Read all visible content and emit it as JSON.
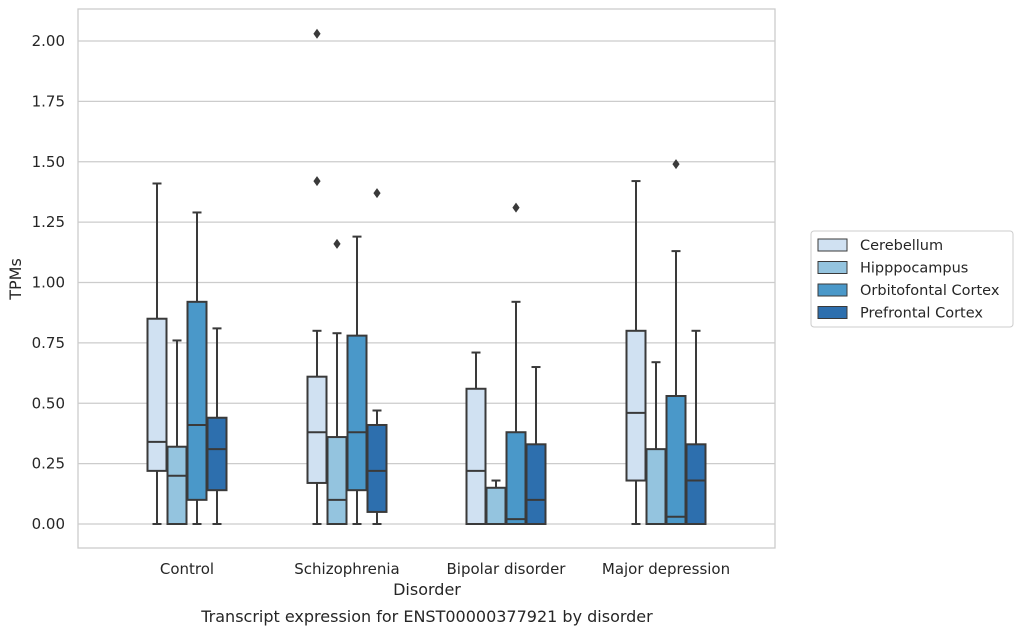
{
  "chart_data": {
    "type": "box",
    "title": "",
    "caption": "Transcript expression for ENST00000377921 by disorder",
    "xlabel": "Disorder",
    "ylabel": "TPMs",
    "ylim": [
      -0.1,
      2.13
    ],
    "yticks": [
      "0.00",
      "0.25",
      "0.50",
      "0.75",
      "1.00",
      "1.25",
      "1.50",
      "1.75",
      "2.00"
    ],
    "grid": true,
    "legend_position": "right",
    "categories": [
      "Control",
      "Schizophrenia",
      "Bipolar disorder",
      "Major depression"
    ],
    "series": [
      {
        "name": "Cerebellum",
        "color": "#d0e1f2",
        "boxes": [
          {
            "whisker_low": 0.0,
            "q1": 0.22,
            "median": 0.34,
            "q3": 0.85,
            "whisker_high": 1.41,
            "outliers": []
          },
          {
            "whisker_low": 0.0,
            "q1": 0.17,
            "median": 0.38,
            "q3": 0.61,
            "whisker_high": 0.8,
            "outliers": [
              1.42,
              2.03
            ]
          },
          {
            "whisker_low": 0.0,
            "q1": 0.0,
            "median": 0.22,
            "q3": 0.56,
            "whisker_high": 0.71,
            "outliers": []
          },
          {
            "whisker_low": 0.0,
            "q1": 0.18,
            "median": 0.46,
            "q3": 0.8,
            "whisker_high": 1.42,
            "outliers": []
          }
        ]
      },
      {
        "name": "Hipppocampus",
        "color": "#94c4df",
        "boxes": [
          {
            "whisker_low": 0.0,
            "q1": 0.0,
            "median": 0.2,
            "q3": 0.32,
            "whisker_high": 0.76,
            "outliers": []
          },
          {
            "whisker_low": 0.0,
            "q1": 0.0,
            "median": 0.1,
            "q3": 0.36,
            "whisker_high": 0.79,
            "outliers": [
              1.16
            ]
          },
          {
            "whisker_low": 0.0,
            "q1": 0.0,
            "median": 0.0,
            "q3": 0.15,
            "whisker_high": 0.18,
            "outliers": []
          },
          {
            "whisker_low": 0.0,
            "q1": 0.0,
            "median": 0.0,
            "q3": 0.31,
            "whisker_high": 0.67,
            "outliers": []
          }
        ]
      },
      {
        "name": "Orbitofontal Cortex",
        "color": "#4a98c9",
        "boxes": [
          {
            "whisker_low": 0.0,
            "q1": 0.1,
            "median": 0.41,
            "q3": 0.92,
            "whisker_high": 1.29,
            "outliers": []
          },
          {
            "whisker_low": 0.0,
            "q1": 0.14,
            "median": 0.38,
            "q3": 0.78,
            "whisker_high": 1.19,
            "outliers": []
          },
          {
            "whisker_low": 0.0,
            "q1": 0.0,
            "median": 0.02,
            "q3": 0.38,
            "whisker_high": 0.92,
            "outliers": [
              1.31
            ]
          },
          {
            "whisker_low": 0.0,
            "q1": 0.0,
            "median": 0.03,
            "q3": 0.53,
            "whisker_high": 1.13,
            "outliers": [
              1.49
            ]
          }
        ]
      },
      {
        "name": "Prefrontal Cortex",
        "color": "#2d6fae",
        "boxes": [
          {
            "whisker_low": 0.0,
            "q1": 0.14,
            "median": 0.31,
            "q3": 0.44,
            "whisker_high": 0.81,
            "outliers": []
          },
          {
            "whisker_low": 0.0,
            "q1": 0.05,
            "median": 0.22,
            "q3": 0.41,
            "whisker_high": 0.47,
            "outliers": [
              1.37
            ]
          },
          {
            "whisker_low": 0.0,
            "q1": 0.0,
            "median": 0.1,
            "q3": 0.33,
            "whisker_high": 0.65,
            "outliers": []
          },
          {
            "whisker_low": 0.0,
            "q1": 0.0,
            "median": 0.18,
            "q3": 0.33,
            "whisker_high": 0.8,
            "outliers": []
          }
        ]
      }
    ]
  }
}
